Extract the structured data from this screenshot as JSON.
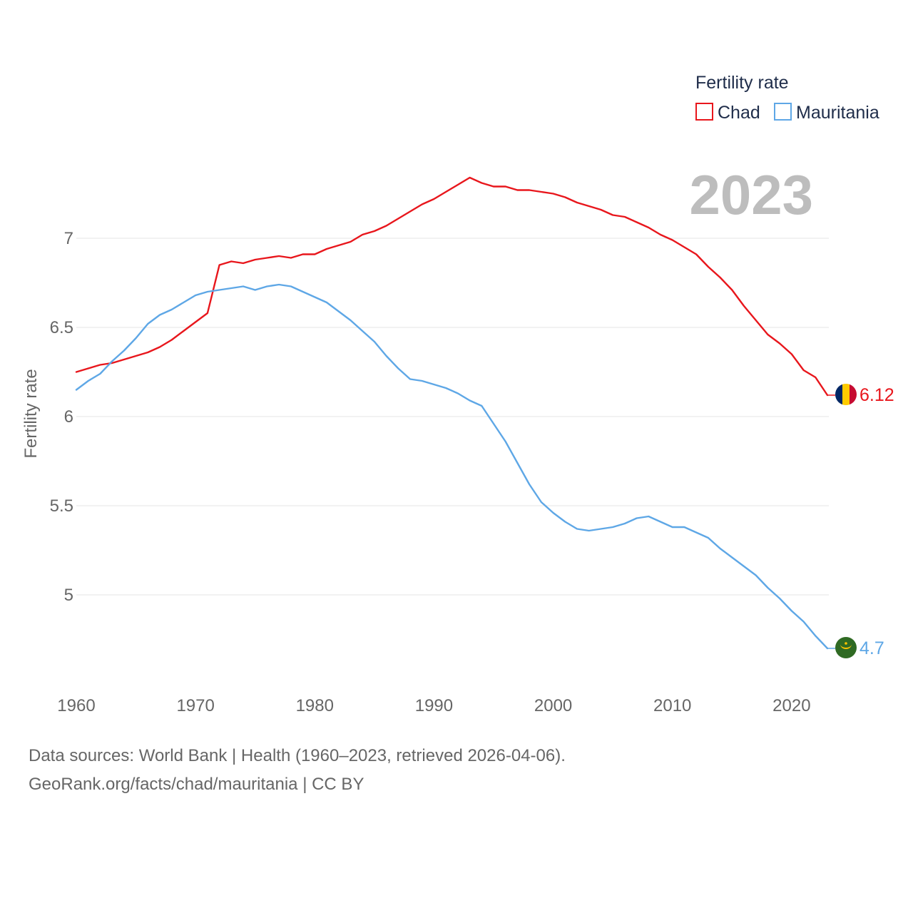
{
  "chart_data": {
    "type": "line",
    "year_label": "2023",
    "ylabel": "Fertility rate",
    "xlabel": "",
    "xlim": [
      1960,
      2023
    ],
    "ylim": [
      4.5,
      7.5
    ],
    "x_ticks": [
      1960,
      1970,
      1980,
      1990,
      2000,
      2010,
      2020
    ],
    "y_ticks": [
      5,
      5.5,
      6,
      6.5,
      7
    ],
    "y_tick_labels": [
      "5",
      "5.5",
      "6",
      "6.5",
      "7"
    ],
    "grid": true,
    "legend": {
      "title": "Fertility rate",
      "position": "top-right",
      "entries": [
        "Chad",
        "Mauritania"
      ]
    },
    "x": [
      1960,
      1961,
      1962,
      1963,
      1964,
      1965,
      1966,
      1967,
      1968,
      1969,
      1970,
      1971,
      1972,
      1973,
      1974,
      1975,
      1976,
      1977,
      1978,
      1979,
      1980,
      1981,
      1982,
      1983,
      1984,
      1985,
      1986,
      1987,
      1988,
      1989,
      1990,
      1991,
      1992,
      1993,
      1994,
      1995,
      1996,
      1997,
      1998,
      1999,
      2000,
      2001,
      2002,
      2003,
      2004,
      2005,
      2006,
      2007,
      2008,
      2009,
      2010,
      2011,
      2012,
      2013,
      2014,
      2015,
      2016,
      2017,
      2018,
      2019,
      2020,
      2021,
      2022,
      2023
    ],
    "series": [
      {
        "name": "Chad",
        "color": "#e8161c",
        "end_label": "6.12",
        "flag": "chad-flag-icon",
        "values": [
          6.25,
          6.27,
          6.29,
          6.3,
          6.32,
          6.34,
          6.36,
          6.39,
          6.43,
          6.48,
          6.53,
          6.58,
          6.85,
          6.87,
          6.86,
          6.88,
          6.89,
          6.9,
          6.89,
          6.91,
          6.91,
          6.94,
          6.96,
          6.98,
          7.02,
          7.04,
          7.07,
          7.11,
          7.15,
          7.19,
          7.22,
          7.26,
          7.3,
          7.34,
          7.31,
          7.29,
          7.29,
          7.27,
          7.27,
          7.26,
          7.25,
          7.23,
          7.2,
          7.18,
          7.16,
          7.13,
          7.12,
          7.09,
          7.06,
          7.02,
          6.99,
          6.95,
          6.91,
          6.84,
          6.78,
          6.71,
          6.62,
          6.54,
          6.46,
          6.41,
          6.35,
          6.26,
          6.22,
          6.12
        ]
      },
      {
        "name": "Mauritania",
        "color": "#5ea7e6",
        "end_label": "4.7",
        "flag": "mauritania-flag-icon",
        "values": [
          6.15,
          6.2,
          6.24,
          6.31,
          6.37,
          6.44,
          6.52,
          6.57,
          6.6,
          6.64,
          6.68,
          6.7,
          6.71,
          6.72,
          6.73,
          6.71,
          6.73,
          6.74,
          6.73,
          6.7,
          6.67,
          6.64,
          6.59,
          6.54,
          6.48,
          6.42,
          6.34,
          6.27,
          6.21,
          6.2,
          6.18,
          6.16,
          6.13,
          6.09,
          6.06,
          5.96,
          5.86,
          5.74,
          5.62,
          5.52,
          5.46,
          5.41,
          5.37,
          5.36,
          5.37,
          5.38,
          5.4,
          5.43,
          5.44,
          5.41,
          5.38,
          5.38,
          5.35,
          5.32,
          5.26,
          5.21,
          5.16,
          5.11,
          5.04,
          4.98,
          4.91,
          4.85,
          4.77,
          4.7
        ]
      }
    ]
  },
  "footer": {
    "line1": "Data sources: World Bank | Health (1960–2023, retrieved 2026-04-06).",
    "line2": "GeoRank.org/facts/chad/mauritania | CC BY"
  }
}
